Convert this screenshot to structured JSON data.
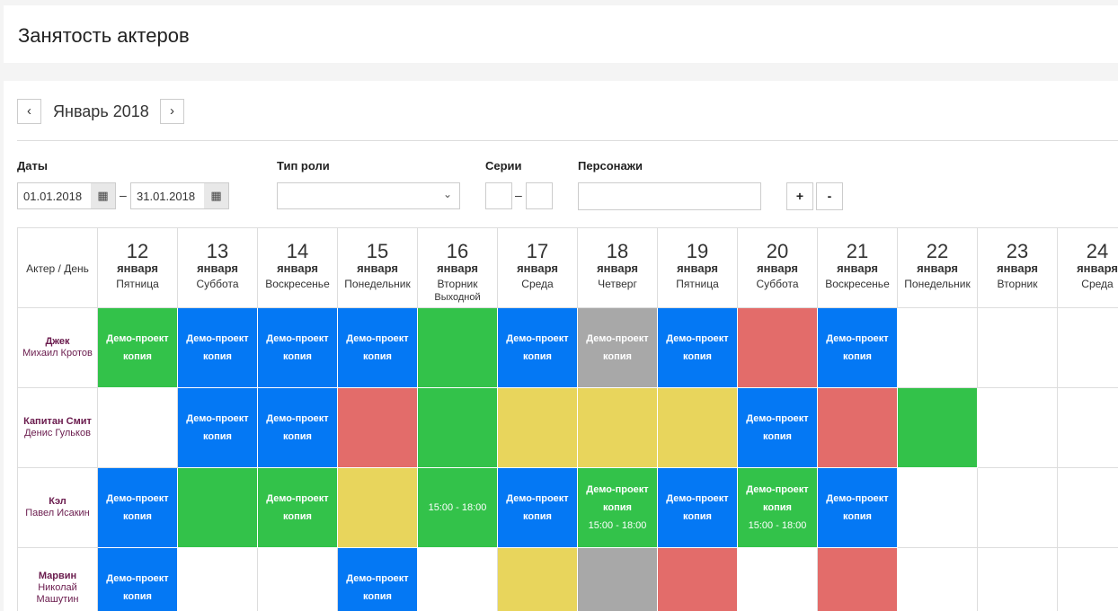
{
  "page_title": "Занятость актеров",
  "nav": {
    "prev_label": "‹",
    "next_label": "›",
    "month_label": "Январь 2018"
  },
  "filters": {
    "dates_label": "Даты",
    "date_from": "01.01.2018",
    "date_to": "31.01.2018",
    "date_separator": "–",
    "role_type_label": "Тип роли",
    "role_type_value": "",
    "series_label": "Серии",
    "series_from": "",
    "series_to": "",
    "series_separator": "–",
    "characters_label": "Персонажи",
    "characters_value": "",
    "plus_label": "+",
    "minus_label": "-",
    "calendar_icon": "calendar-icon",
    "select_icon": "chevron-down-icon"
  },
  "grid": {
    "corner_label": "Актер / День",
    "days": [
      {
        "num": "12",
        "month": "января",
        "weekday": "Пятница",
        "note": ""
      },
      {
        "num": "13",
        "month": "января",
        "weekday": "Суббота",
        "note": ""
      },
      {
        "num": "14",
        "month": "января",
        "weekday": "Воскресенье",
        "note": ""
      },
      {
        "num": "15",
        "month": "января",
        "weekday": "Понедельник",
        "note": ""
      },
      {
        "num": "16",
        "month": "января",
        "weekday": "Вторник",
        "note": "Выходной"
      },
      {
        "num": "17",
        "month": "января",
        "weekday": "Среда",
        "note": ""
      },
      {
        "num": "18",
        "month": "января",
        "weekday": "Четверг",
        "note": ""
      },
      {
        "num": "19",
        "month": "января",
        "weekday": "Пятница",
        "note": ""
      },
      {
        "num": "20",
        "month": "января",
        "weekday": "Суббота",
        "note": ""
      },
      {
        "num": "21",
        "month": "января",
        "weekday": "Воскресенье",
        "note": ""
      },
      {
        "num": "22",
        "month": "января",
        "weekday": "Понедельник",
        "note": ""
      },
      {
        "num": "23",
        "month": "января",
        "weekday": "Вторник",
        "note": ""
      },
      {
        "num": "24",
        "month": "января",
        "weekday": "Среда",
        "note": ""
      }
    ],
    "actors": [
      {
        "role": "Джек",
        "name": "Михаил Кротов",
        "cells": [
          {
            "color": "green",
            "title": "Демо-проект",
            "subtitle": "копия",
            "time": ""
          },
          {
            "color": "blue",
            "title": "Демо-проект",
            "subtitle": "копия",
            "time": ""
          },
          {
            "color": "blue",
            "title": "Демо-проект",
            "subtitle": "копия",
            "time": ""
          },
          {
            "color": "blue",
            "title": "Демо-проект",
            "subtitle": "копия",
            "time": ""
          },
          {
            "color": "green",
            "title": "",
            "subtitle": "",
            "time": ""
          },
          {
            "color": "blue",
            "title": "Демо-проект",
            "subtitle": "копия",
            "time": ""
          },
          {
            "color": "gray",
            "title": "Демо-проект",
            "subtitle": "копия",
            "time": ""
          },
          {
            "color": "blue",
            "title": "Демо-проект",
            "subtitle": "копия",
            "time": ""
          },
          {
            "color": "red",
            "title": "",
            "subtitle": "",
            "time": ""
          },
          {
            "color": "blue",
            "title": "Демо-проект",
            "subtitle": "копия",
            "time": ""
          },
          {
            "color": "empty",
            "title": "",
            "subtitle": "",
            "time": ""
          },
          {
            "color": "empty",
            "title": "",
            "subtitle": "",
            "time": ""
          },
          {
            "color": "empty",
            "title": "",
            "subtitle": "",
            "time": ""
          }
        ]
      },
      {
        "role": "Капитан Смит",
        "name": "Денис Гульков",
        "cells": [
          {
            "color": "empty",
            "title": "",
            "subtitle": "",
            "time": ""
          },
          {
            "color": "blue",
            "title": "Демо-проект",
            "subtitle": "копия",
            "time": ""
          },
          {
            "color": "blue",
            "title": "Демо-проект",
            "subtitle": "копия",
            "time": ""
          },
          {
            "color": "red",
            "title": "",
            "subtitle": "",
            "time": ""
          },
          {
            "color": "green",
            "title": "",
            "subtitle": "",
            "time": ""
          },
          {
            "color": "yellow",
            "title": "",
            "subtitle": "",
            "time": ""
          },
          {
            "color": "yellow",
            "title": "",
            "subtitle": "",
            "time": ""
          },
          {
            "color": "yellow",
            "title": "",
            "subtitle": "",
            "time": ""
          },
          {
            "color": "blue",
            "title": "Демо-проект",
            "subtitle": "копия",
            "time": ""
          },
          {
            "color": "red",
            "title": "",
            "subtitle": "",
            "time": ""
          },
          {
            "color": "green",
            "title": "",
            "subtitle": "",
            "time": ""
          },
          {
            "color": "empty",
            "title": "",
            "subtitle": "",
            "time": ""
          },
          {
            "color": "empty",
            "title": "",
            "subtitle": "",
            "time": ""
          }
        ]
      },
      {
        "role": "Кэл",
        "name": "Павел Исакин",
        "cells": [
          {
            "color": "blue",
            "title": "Демо-проект",
            "subtitle": "копия",
            "time": ""
          },
          {
            "color": "green",
            "title": "",
            "subtitle": "",
            "time": ""
          },
          {
            "color": "green",
            "title": "Демо-проект",
            "subtitle": "копия",
            "time": ""
          },
          {
            "color": "yellow",
            "title": "",
            "subtitle": "",
            "time": ""
          },
          {
            "color": "green",
            "title": "",
            "subtitle": "",
            "time": "15:00 - 18:00"
          },
          {
            "color": "blue",
            "title": "Демо-проект",
            "subtitle": "копия",
            "time": ""
          },
          {
            "color": "green",
            "title": "Демо-проект",
            "subtitle": "копия",
            "time": "15:00 - 18:00"
          },
          {
            "color": "blue",
            "title": "Демо-проект",
            "subtitle": "копия",
            "time": ""
          },
          {
            "color": "green",
            "title": "Демо-проект",
            "subtitle": "копия",
            "time": "15:00 - 18:00"
          },
          {
            "color": "blue",
            "title": "Демо-проект",
            "subtitle": "копия",
            "time": ""
          },
          {
            "color": "empty",
            "title": "",
            "subtitle": "",
            "time": ""
          },
          {
            "color": "empty",
            "title": "",
            "subtitle": "",
            "time": ""
          },
          {
            "color": "empty",
            "title": "",
            "subtitle": "",
            "time": ""
          }
        ]
      },
      {
        "role": "Марвин",
        "name": "Николай Машутин",
        "cells": [
          {
            "color": "blue",
            "title": "Демо-проект",
            "subtitle": "копия",
            "time": ""
          },
          {
            "color": "empty",
            "title": "",
            "subtitle": "",
            "time": ""
          },
          {
            "color": "empty",
            "title": "",
            "subtitle": "",
            "time": ""
          },
          {
            "color": "blue",
            "title": "Демо-проект",
            "subtitle": "копия",
            "time": ""
          },
          {
            "color": "empty",
            "title": "",
            "subtitle": "",
            "time": ""
          },
          {
            "color": "yellow",
            "title": "",
            "subtitle": "",
            "time": ""
          },
          {
            "color": "gray",
            "title": "",
            "subtitle": "",
            "time": ""
          },
          {
            "color": "red",
            "title": "",
            "subtitle": "",
            "time": ""
          },
          {
            "color": "empty",
            "title": "",
            "subtitle": "",
            "time": ""
          },
          {
            "color": "red",
            "title": "",
            "subtitle": "",
            "time": ""
          },
          {
            "color": "empty",
            "title": "",
            "subtitle": "",
            "time": ""
          },
          {
            "color": "empty",
            "title": "",
            "subtitle": "",
            "time": ""
          },
          {
            "color": "empty",
            "title": "",
            "subtitle": "",
            "time": ""
          }
        ]
      }
    ]
  },
  "colors": {
    "blue": "#0478f4",
    "green": "#33c24a",
    "red": "#e36c6a",
    "yellow": "#e8d55c",
    "gray": "#a8a8a8",
    "actor_text": "#6a1b4d"
  }
}
